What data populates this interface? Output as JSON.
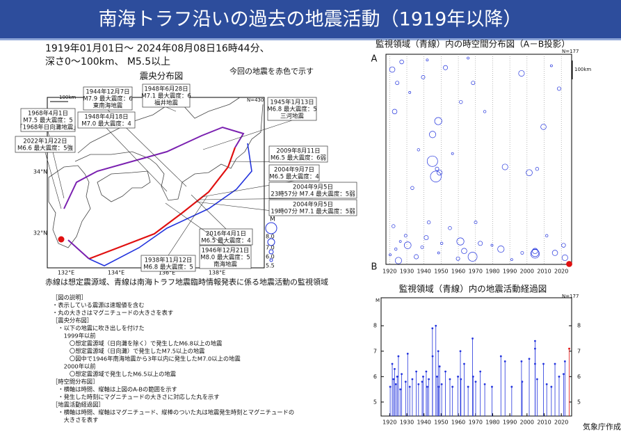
{
  "header": {
    "title": "南海トラフ沿いの過去の地震活動（1919年以降）"
  },
  "period": [
    "1919年01月01日～ 2024年08月08日16時44分、",
    "深さ0～100km、 M5.5以上"
  ],
  "map": {
    "title": "震央分布図",
    "note": "今回の地震を赤色で示す",
    "count": "N=430",
    "scale": "100km",
    "lat_labels": [
      "34°N",
      "32°N"
    ],
    "lon_labels": [
      "132°E",
      "134°E",
      "136°E",
      "138°E"
    ],
    "legend": {
      "title": "M",
      "labels": [
        "8.0",
        "7.0",
        "6.0",
        "5.5"
      ]
    },
    "callouts": [
      [
        "1944年12月7日",
        "M7.9 最大震度：6",
        "東南海地震"
      ],
      [
        "1948年6月28日",
        "M7.1 最大震度：6",
        "福井地震"
      ],
      [
        "1968年4月1日",
        "M7.5 最大震度：5",
        "「1968年日向灘地震」"
      ],
      [
        "1948年4月18日",
        "M7.0 最大震度：4"
      ],
      [
        "2022年1月22日",
        "M6.6 最大震度：5強"
      ],
      [
        "1945年1月13日",
        "M6.8 最大震度：5",
        "三河地震"
      ],
      [
        "2009年8月11日",
        "M6.5 最大震度：6弱"
      ],
      [
        "2004年9月7日",
        "M6.5 最大震度：4"
      ],
      [
        "2004年9月5日",
        "23時57分 M7.4 最大震度：5弱"
      ],
      [
        "2004年9月5日",
        "19時07分 M7.1 最大震度：5弱"
      ],
      [
        "2016年4月1日",
        "M6.5 最大震度：4"
      ],
      [
        "1946年12月21日",
        "M8.0 最大震度：5",
        "南海地震"
      ],
      [
        "1938年11月12日",
        "M6.8 最大震度：5"
      ]
    ],
    "caption": "赤線は想定震源域、青線は南海トラフ地震臨時情報発表に係る地震活動の監視領域"
  },
  "explanation": [
    "［図の説明］",
    "・表示している震源は速報値を含む",
    "・丸の大きさはマグニチュードの大きさを表す",
    "［震央分布図］",
    "　・以下の地震に吹き出しを付けた",
    "　　1999年以前",
    "　　　〇想定震源域（日向灘を除く）で発生したM6.8以上の地震",
    "　　　〇想定震源域（日向灘）で発生したM7.5以上の地震",
    "　　　〇図中で1946年南海地震から3年以内に発生したM7.0以上の地震",
    "　　2000年以前",
    "　　　〇想定震源域で発生したM6.5以上の地震",
    "［時空間分布図］",
    "　・横軸は時間、縦軸は上図のA-Bの範囲を示す",
    "　・発生した時刻にマグニチュードの大きさに対応した丸を示す",
    "［地震活動経過図］",
    "　・横軸は時間、縦軸はマグニチュード、縦棒のついた丸は地震発生時刻とマグニチュードの",
    "　　大きさを表す"
  ],
  "spacetime": {
    "title": "監視領域（青線）内の時空間分布図（A－B投影）",
    "count": "N=177",
    "scale": "100km",
    "top_label": "A",
    "bottom_label": "B",
    "ylim": [
      0,
      1100
    ],
    "y": [
      1050,
      80,
      900,
      300,
      1020,
      150,
      1080,
      980,
      40,
      950,
      1000,
      200,
      700,
      1060,
      500,
      1010,
      120,
      960,
      30,
      880,
      560,
      420,
      640,
      600,
      350,
      1040,
      620,
      990,
      70,
      910,
      520,
      1070,
      980,
      250,
      1030,
      20,
      1060,
      150,
      880,
      990,
      300,
      1000,
      1020,
      590,
      1075,
      100,
      1040,
      620,
      1030,
      1040,
      1045,
      600,
      380,
      950,
      60,
      1040,
      180,
      1000,
      1065,
      1098
    ]
  },
  "timeline": {
    "type": "scatter",
    "title": "監視領域（青線）内の地震活動経過図",
    "count": "N=177",
    "ylabel": "M",
    "xlim": [
      1915,
      2026
    ],
    "ylim": [
      4.45,
      9.1
    ],
    "yticks": [
      5,
      6,
      7,
      8
    ],
    "xticks": [
      1920,
      1930,
      1940,
      1950,
      1960,
      1970,
      1980,
      1990,
      2000,
      2010,
      2020
    ],
    "x": [
      1920.3,
      1921.5,
      1922.2,
      1922.9,
      1923.6,
      1924.4,
      1925.1,
      1926.2,
      1927.0,
      1929.3,
      1930.5,
      1931.7,
      1933.2,
      1935.5,
      1936.8,
      1938.9,
      1939.5,
      1941.3,
      1941.9,
      1942.8,
      1944.9,
      1945.0,
      1946.9,
      1947.6,
      1948.3,
      1948.5,
      1949.1,
      1950.3,
      1952.5,
      1955.1,
      1956.6,
      1959.8,
      1961.2,
      1961.5,
      1963.4,
      1965.7,
      1968.3,
      1968.6,
      1970.1,
      1972.8,
      1975.4,
      1979.6,
      1984.8,
      1987.2,
      1991.1,
      1996.8,
      1997.2,
      2001.3,
      2004.7,
      2004.7,
      2004.7,
      2005.9,
      2009.6,
      2011.5,
      2014.2,
      2016.3,
      2018.7,
      2021.3,
      2022.1,
      2024.6
    ],
    "values": [
      5.6,
      6.5,
      5.9,
      6.3,
      5.7,
      6.0,
      6.8,
      5.5,
      6.1,
      5.8,
      6.9,
      5.6,
      5.9,
      6.2,
      5.7,
      5.8,
      6.0,
      6.2,
      5.6,
      5.9,
      7.9,
      6.8,
      8.0,
      6.0,
      7.0,
      5.6,
      6.4,
      5.7,
      6.2,
      5.9,
      5.6,
      6.0,
      7.0,
      5.9,
      6.5,
      5.6,
      7.5,
      6.0,
      5.8,
      6.2,
      5.7,
      5.6,
      6.8,
      6.6,
      5.6,
      6.6,
      5.8,
      6.7,
      6.5,
      7.1,
      7.4,
      5.9,
      6.5,
      5.7,
      5.6,
      6.5,
      6.0,
      6.1,
      6.6,
      7.1
    ],
    "color": "#2233dd",
    "highlight_color": "#e01010"
  },
  "credit": "気象庁作成"
}
